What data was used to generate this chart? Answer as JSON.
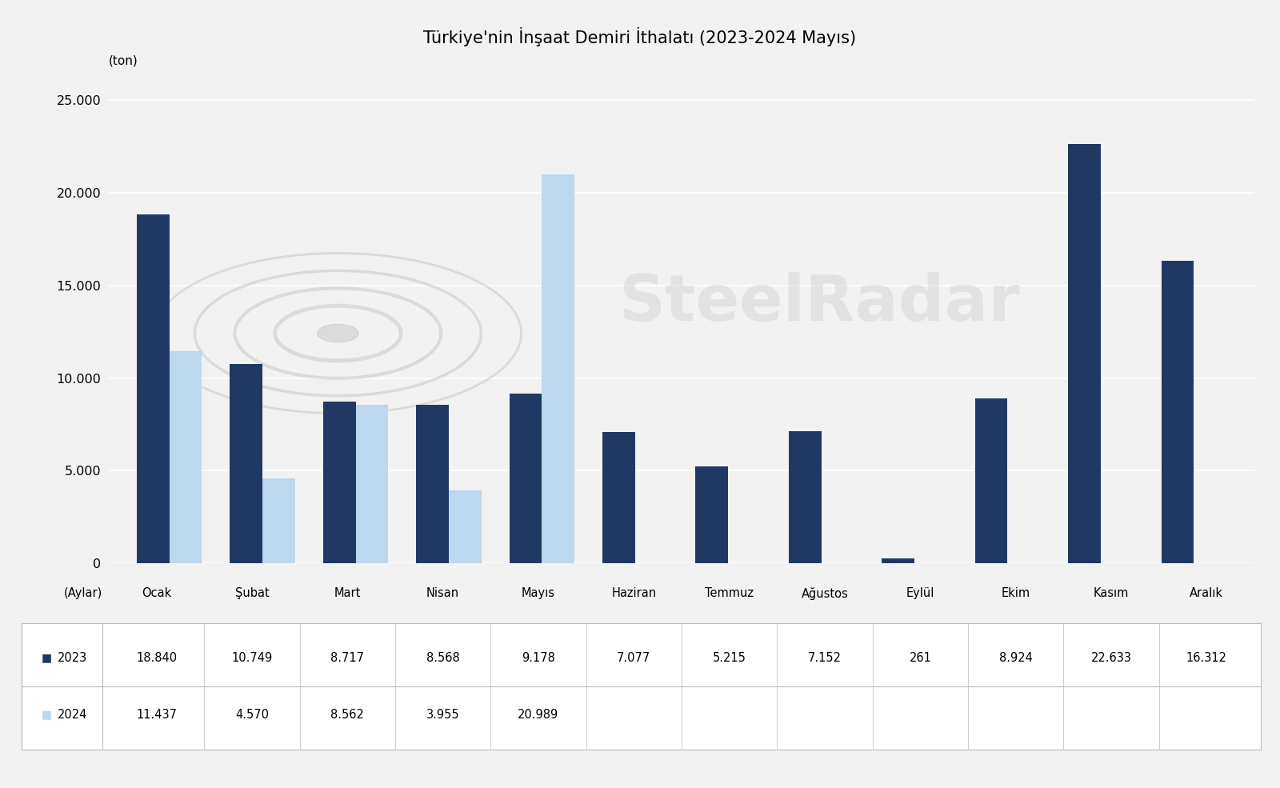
{
  "title": "Türkiye'nin İnşaat Demiri İthalatı (2023-2024 Mayıs)",
  "ylabel": "(ton)",
  "xlabel_aylar": "(Aylar)",
  "months": [
    "Ocak",
    "Şubat",
    "Mart",
    "Nisan",
    "Mayıs",
    "Haziran",
    "Temmuz",
    "Ağustos",
    "Eylül",
    "Ekim",
    "Kasım",
    "Aralık"
  ],
  "data_2023": [
    18840,
    10749,
    8717,
    8568,
    9178,
    7077,
    5215,
    7152,
    261,
    8924,
    22633,
    16312
  ],
  "data_2024": [
    11437,
    4570,
    8562,
    3955,
    20989,
    null,
    null,
    null,
    null,
    null,
    null,
    null
  ],
  "color_2023": "#1F3864",
  "color_2024": "#BDD7EE",
  "ylim": [
    0,
    27000
  ],
  "yticks": [
    0,
    5000,
    10000,
    15000,
    20000,
    25000
  ],
  "background_color": "#F2F2F2",
  "watermark_text": "SteelRadar",
  "title_fontsize": 15,
  "label_2023": "2023",
  "label_2024": "2024",
  "table_2023_values": [
    "18.840",
    "10.749",
    "8.717",
    "8.568",
    "9.178",
    "7.077",
    "5.215",
    "7.152",
    "261",
    "8.924",
    "22.633",
    "16.312"
  ],
  "table_2024_values": [
    "11.437",
    "4.570",
    "8.562",
    "3.955",
    "20.989",
    "",
    "",
    "",
    "",
    "",
    "",
    ""
  ],
  "bar_width": 0.35
}
